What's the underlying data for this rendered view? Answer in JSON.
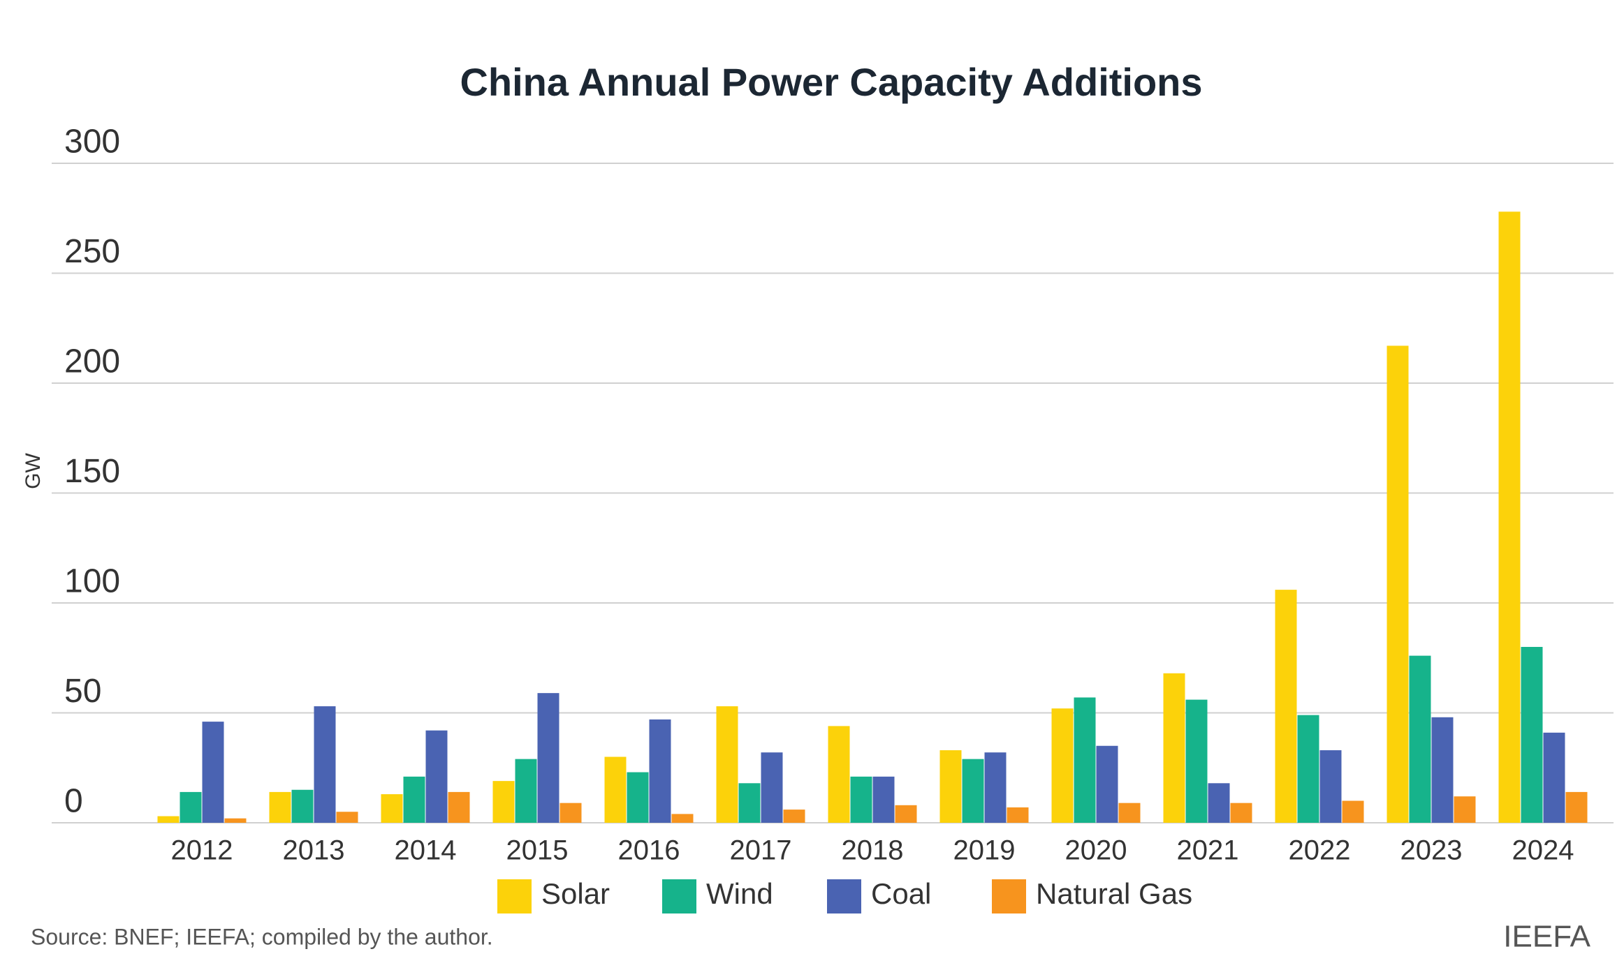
{
  "chart_data": {
    "type": "bar",
    "title": "China Annual Power Capacity Additions",
    "y_label": "GW",
    "categories": [
      "2012",
      "2013",
      "2014",
      "2015",
      "2016",
      "2017",
      "2018",
      "2019",
      "2020",
      "2021",
      "2022",
      "2023",
      "2024"
    ],
    "series": [
      {
        "name": "Solar",
        "color": "#fcd20a",
        "values": [
          3,
          14,
          13,
          19,
          30,
          53,
          44,
          33,
          52,
          68,
          106,
          217,
          278
        ]
      },
      {
        "name": "Wind",
        "color": "#16b38b",
        "values": [
          14,
          15,
          21,
          29,
          23,
          18,
          21,
          29,
          57,
          56,
          49,
          76,
          80
        ]
      },
      {
        "name": "Coal",
        "color": "#4a63b2",
        "values": [
          46,
          53,
          42,
          59,
          47,
          32,
          21,
          32,
          35,
          18,
          33,
          48,
          41
        ]
      },
      {
        "name": "Natural Gas",
        "color": "#f7941e",
        "values": [
          2,
          5,
          14,
          9,
          4,
          6,
          8,
          7,
          9,
          9,
          10,
          12,
          14
        ]
      }
    ],
    "ylim": [
      0,
      300
    ],
    "yticks": [
      0,
      50,
      100,
      150,
      200,
      250,
      300
    ],
    "grid": true,
    "legend": "bottom",
    "source": "Source: BNEF; IEEFA; compiled by the author.",
    "brand": "IEEFA"
  }
}
